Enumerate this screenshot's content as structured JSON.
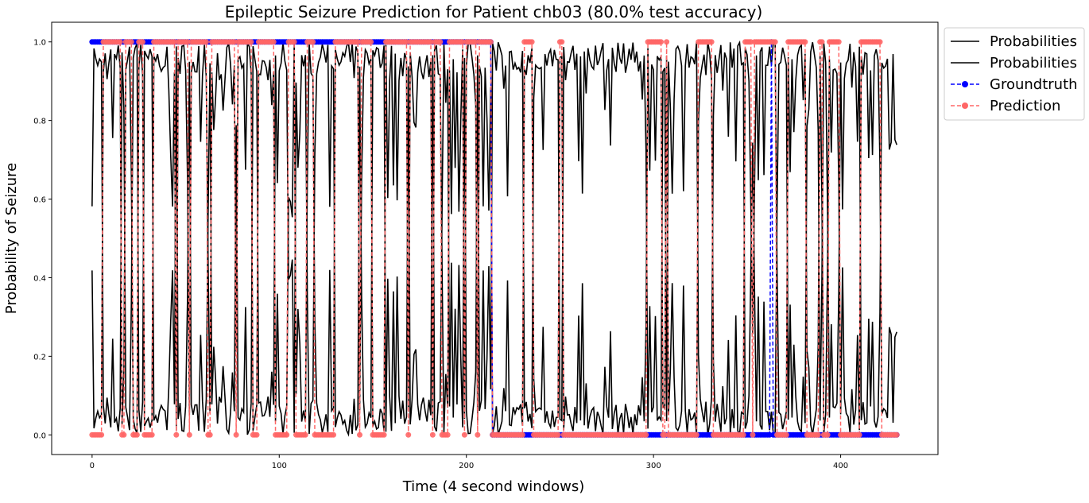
{
  "chart_data": {
    "type": "line",
    "title": "Epileptic Seizure Prediction for Patient chb03 (80.0% test accuracy)",
    "xlabel": "Time (4 second windows)",
    "ylabel": "Probability of Seizure",
    "xlim": [
      -21.6,
      452
    ],
    "ylim": [
      -0.05,
      1.05
    ],
    "xticks": [
      0,
      100,
      200,
      300,
      400
    ],
    "yticks": [
      0.0,
      0.2,
      0.4,
      0.6,
      0.8,
      1.0
    ],
    "xtick_labels": [
      "0",
      "100",
      "200",
      "300",
      "400"
    ],
    "ytick_labels": [
      "0.0",
      "0.2",
      "0.4",
      "0.6",
      "0.8",
      "1.0"
    ],
    "grid": false,
    "legend_position": "outside top-right",
    "n_points": 431,
    "series": [
      {
        "name": "Probabilities",
        "color": "#000000",
        "style": "solid",
        "role": "prob-class-1"
      },
      {
        "name": "Probabilities",
        "color": "#000000",
        "style": "solid",
        "role": "prob-class-0"
      },
      {
        "name": "Groundtruth",
        "color": "#0000ff",
        "style": "dashed",
        "marker": "circle",
        "role": "groundtruth"
      },
      {
        "name": "Prediction",
        "color": "#ff6666",
        "style": "dashed",
        "marker": "circle",
        "role": "prediction"
      }
    ],
    "groundtruth_segments": [
      {
        "from": 0,
        "to": 213,
        "value": 1
      },
      {
        "from": 214,
        "to": 362,
        "value": 0
      },
      {
        "from": 363,
        "to": 363,
        "value": 1
      },
      {
        "from": 364,
        "to": 430,
        "value": 0
      }
    ],
    "prediction_zero_indices": [
      0,
      1,
      2,
      3,
      4,
      5,
      16,
      17,
      22,
      23,
      24,
      28,
      29,
      30,
      31,
      32,
      45,
      52,
      62,
      63,
      77,
      86,
      87,
      88,
      98,
      99,
      100,
      101,
      102,
      103,
      104,
      109,
      110,
      111,
      112,
      113,
      114,
      119,
      120,
      121,
      122,
      123,
      124,
      125,
      126,
      127,
      128,
      129,
      143,
      150,
      151,
      152,
      153,
      154,
      155,
      156,
      169,
      182,
      187,
      188,
      189,
      190,
      199,
      206
    ],
    "prediction_one_indices": [
      231,
      232,
      233,
      234,
      235,
      250,
      251,
      297,
      298,
      299,
      300,
      301,
      302,
      303,
      304,
      307,
      324,
      325,
      326,
      327,
      328,
      329,
      330,
      331,
      349,
      350,
      351,
      352,
      354,
      355,
      356,
      357,
      358,
      359,
      360,
      361,
      362,
      364,
      365,
      372,
      373,
      374,
      375,
      376,
      377,
      378,
      379,
      380,
      381,
      389,
      390,
      394,
      395,
      396,
      397,
      398,
      399,
      411,
      412,
      413,
      414,
      415,
      416,
      417,
      418,
      419,
      420,
      421
    ]
  }
}
